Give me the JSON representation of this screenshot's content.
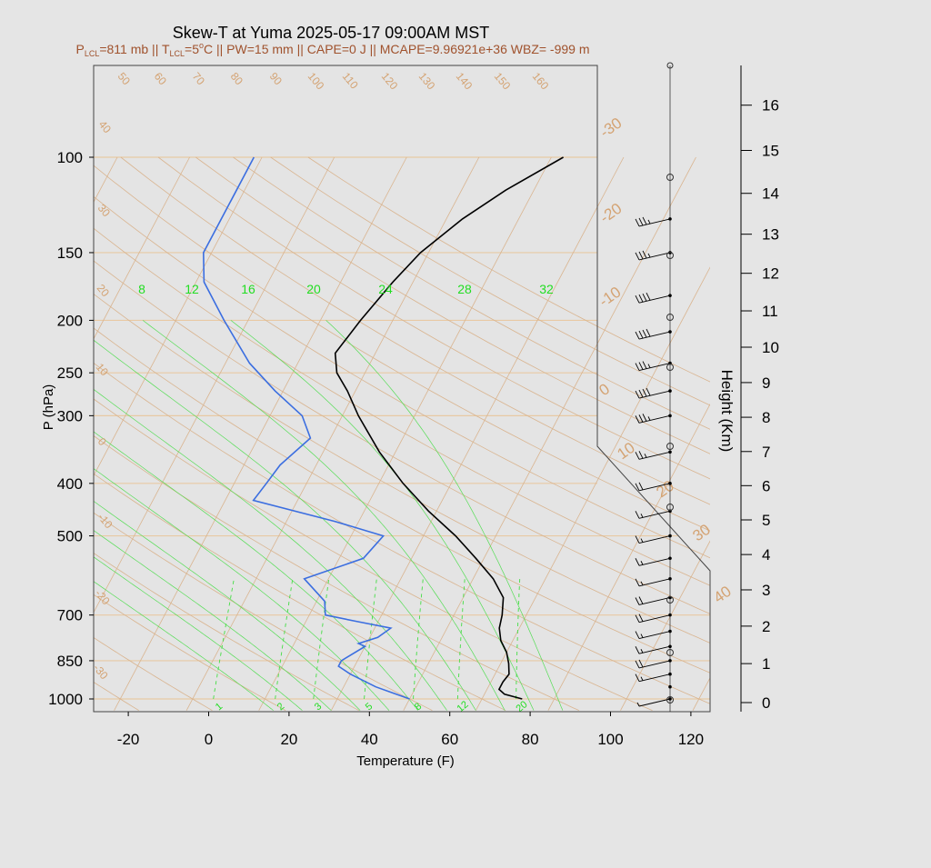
{
  "chart_data": {
    "type": "skew-t",
    "title": "Skew-T at Yuma 2025-05-17 09:00AM MST",
    "subtitle": {
      "p_lcl": "P",
      "p_lcl_sub": "LCL",
      "p_lcl_val": "=811 mb || T",
      "t_lcl_sub": "LCL",
      "t_lcl_val": "=5",
      "deg": "o",
      "rest": "C || PW=15 mm || CAPE=0 J || MCAPE=9.96921e+36 WBZ= -999 m"
    },
    "xlabel": "Temperature (F)",
    "ylabel": "P (hPa)",
    "y2label": "Height (Km)",
    "xlim": [
      -28,
      125
    ],
    "ylim": [
      1050,
      100
    ],
    "x_ticks": [
      -20,
      0,
      20,
      40,
      60,
      80,
      100,
      120
    ],
    "p_ticks": [
      100,
      150,
      200,
      250,
      300,
      400,
      500,
      700,
      850,
      1000
    ],
    "height_ticks_km": [
      0,
      1,
      2,
      3,
      4,
      5,
      6,
      7,
      8,
      9,
      10,
      11,
      12,
      13,
      14,
      15,
      16
    ],
    "isotherm_labels": [
      "-30",
      "-20",
      "-10",
      "0",
      "10",
      "20",
      "30",
      "40"
    ],
    "dry_adiabat_labels": [
      "-30",
      "-20",
      "-10",
      "0",
      "10",
      "20",
      "30",
      "40",
      "50",
      "60",
      "70",
      "80",
      "90",
      "100",
      "110",
      "120",
      "130",
      "140",
      "150",
      "160"
    ],
    "mixing_ratio_top_labels": [
      "8",
      "12",
      "16",
      "20",
      "24",
      "28",
      "32"
    ],
    "mixing_ratio_bottom_labels": [
      "1",
      "2",
      "3",
      "5",
      "8",
      "12",
      "20"
    ],
    "temperature": {
      "color": "#000000",
      "points": [
        {
          "p": 1000,
          "t": 78
        },
        {
          "p": 980,
          "t": 73
        },
        {
          "p": 960,
          "t": 71
        },
        {
          "p": 930,
          "t": 71
        },
        {
          "p": 900,
          "t": 71.5
        },
        {
          "p": 860,
          "t": 70
        },
        {
          "p": 820,
          "t": 68
        },
        {
          "p": 780,
          "t": 65
        },
        {
          "p": 740,
          "t": 63
        },
        {
          "p": 700,
          "t": 62
        },
        {
          "p": 650,
          "t": 60
        },
        {
          "p": 600,
          "t": 55
        },
        {
          "p": 550,
          "t": 48
        },
        {
          "p": 500,
          "t": 40
        },
        {
          "p": 450,
          "t": 30
        },
        {
          "p": 400,
          "t": 20
        },
        {
          "p": 350,
          "t": 10
        },
        {
          "p": 300,
          "t": 0
        },
        {
          "p": 270,
          "t": -6
        },
        {
          "p": 250,
          "t": -11
        },
        {
          "p": 230,
          "t": -14
        },
        {
          "p": 200,
          "t": -12
        },
        {
          "p": 170,
          "t": -9
        },
        {
          "p": 150,
          "t": -6
        },
        {
          "p": 130,
          "t": 0
        },
        {
          "p": 115,
          "t": 7
        },
        {
          "p": 100,
          "t": 17
        }
      ]
    },
    "dewpoint": {
      "color": "#3b6ee0",
      "points": [
        {
          "p": 1000,
          "t": 50
        },
        {
          "p": 950,
          "t": 40
        },
        {
          "p": 900,
          "t": 32
        },
        {
          "p": 870,
          "t": 28
        },
        {
          "p": 850,
          "t": 28
        },
        {
          "p": 800,
          "t": 32
        },
        {
          "p": 790,
          "t": 30
        },
        {
          "p": 770,
          "t": 34
        },
        {
          "p": 740,
          "t": 36
        },
        {
          "p": 720,
          "t": 27
        },
        {
          "p": 700,
          "t": 18
        },
        {
          "p": 660,
          "t": 16
        },
        {
          "p": 600,
          "t": 8
        },
        {
          "p": 550,
          "t": 20
        },
        {
          "p": 500,
          "t": 22
        },
        {
          "p": 470,
          "t": 8
        },
        {
          "p": 430,
          "t": -15
        },
        {
          "p": 400,
          "t": -14
        },
        {
          "p": 370,
          "t": -13
        },
        {
          "p": 330,
          "t": -9
        },
        {
          "p": 300,
          "t": -14
        },
        {
          "p": 270,
          "t": -24
        },
        {
          "p": 240,
          "t": -34
        },
        {
          "p": 200,
          "t": -46
        },
        {
          "p": 170,
          "t": -56
        },
        {
          "p": 150,
          "t": -60
        },
        {
          "p": 130,
          "t": -60
        },
        {
          "p": 100,
          "t": -60
        }
      ]
    },
    "wind_barbs": [
      {
        "p": 1000,
        "speed_kt": 5
      },
      {
        "p": 950,
        "speed_kt": 0
      },
      {
        "p": 900,
        "speed_kt": 15
      },
      {
        "p": 850,
        "speed_kt": 20
      },
      {
        "p": 800,
        "speed_kt": 15
      },
      {
        "p": 750,
        "speed_kt": 15
      },
      {
        "p": 700,
        "speed_kt": 20
      },
      {
        "p": 650,
        "speed_kt": 20
      },
      {
        "p": 600,
        "speed_kt": 15
      },
      {
        "p": 550,
        "speed_kt": 15
      },
      {
        "p": 500,
        "speed_kt": 15
      },
      {
        "p": 450,
        "speed_kt": 15
      },
      {
        "p": 400,
        "speed_kt": 20
      },
      {
        "p": 350,
        "speed_kt": 25
      },
      {
        "p": 300,
        "speed_kt": 35
      },
      {
        "p": 270,
        "speed_kt": 40
      },
      {
        "p": 240,
        "speed_kt": 35
      },
      {
        "p": 210,
        "speed_kt": 40
      },
      {
        "p": 180,
        "speed_kt": 40
      },
      {
        "p": 150,
        "speed_kt": 35
      },
      {
        "p": 130,
        "speed_kt": 35
      }
    ]
  }
}
